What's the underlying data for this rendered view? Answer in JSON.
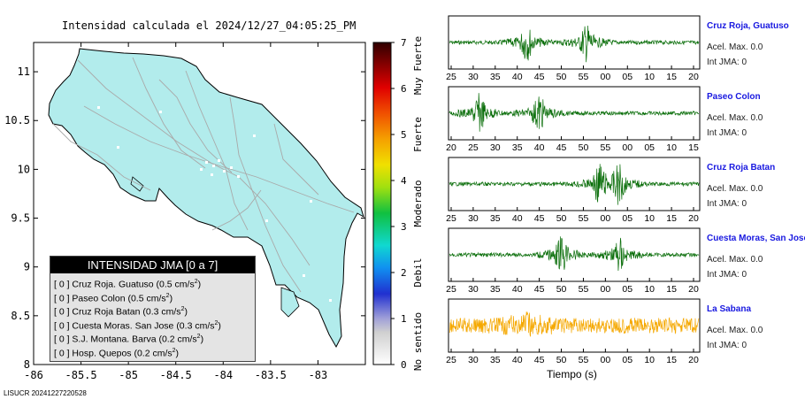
{
  "map": {
    "title": "Intensidad calculada el 2024/12/27_04:05:25_PM",
    "footer": "LISUCR 20241227220528",
    "chart_data": {
      "type": "map",
      "x_ticks": [
        "-86",
        "-85.5",
        "-85",
        "-84.5",
        "-84",
        "-83.5",
        "-83"
      ],
      "y_ticks": [
        "11",
        "10.5",
        "10",
        "9.5",
        "9",
        "8.5",
        "8"
      ],
      "xlim": [
        -86,
        -82.5
      ],
      "ylim": [
        8,
        11.3
      ],
      "land_color": "#b2ecec"
    }
  },
  "colorbar": {
    "ticks": [
      "0",
      "1",
      "2",
      "3",
      "4",
      "5",
      "6",
      "7"
    ],
    "labels": [
      "No sentido",
      "Debil",
      "Moderado",
      "Fuerte",
      "Muy Fuerte"
    ]
  },
  "legend": {
    "title": "INTENSIDAD JMA [0 a 7]",
    "items": [
      {
        "level": "[ 0 ]",
        "text": "Cruz Roja. Guatuso (0.5 cm/s",
        "sup": "2",
        "tail": ")"
      },
      {
        "level": "[ 0 ]",
        "text": "Paseo Colon (0.5 cm/s",
        "sup": "2",
        "tail": ")"
      },
      {
        "level": "[ 0 ]",
        "text": "Cruz Roja Batan (0.3 cm/s",
        "sup": "2",
        "tail": ")"
      },
      {
        "level": "[ 0 ]",
        "text": "Cuesta Moras. San Jose (0.3 cm/s",
        "sup": "2",
        "tail": ")"
      },
      {
        "level": "[ 0 ]",
        "text": "S.J. Montana. Barva (0.2 cm/s",
        "sup": "2",
        "tail": ")"
      },
      {
        "level": "[ 0 ]",
        "text": "Hosp. Quepos (0.2 cm/s",
        "sup": "2",
        "tail": ")"
      }
    ]
  },
  "waveforms": {
    "xlabel": "Tiempo (s)",
    "panels": [
      {
        "name": "Cruz Roja, Guatuso",
        "acel": "Acel. Max. 0.0",
        "jma": "Int JMA: 0",
        "color": "#0a6e0a",
        "ticks": [
          "25",
          "30",
          "35",
          "40",
          "45",
          "50",
          "55",
          "00",
          "05",
          "10",
          "15",
          "20"
        ],
        "bursts": [
          0.31,
          0.55
        ]
      },
      {
        "name": "Paseo Colon",
        "acel": "Acel. Max. 0.0",
        "jma": "Int JMA: 0",
        "color": "#0a6e0a",
        "ticks": [
          "20",
          "25",
          "30",
          "35",
          "40",
          "45",
          "50",
          "55",
          "00",
          "05",
          "10",
          "15"
        ],
        "bursts": [
          0.12,
          0.36
        ]
      },
      {
        "name": "Cruz Roja Batan",
        "acel": "Acel. Max. 0.0",
        "jma": "Int JMA: 0",
        "color": "#0a6e0a",
        "ticks": [
          "25",
          "30",
          "35",
          "40",
          "45",
          "50",
          "55",
          "00",
          "05",
          "10",
          "15",
          "20"
        ],
        "bursts": [
          0.6,
          0.68
        ]
      },
      {
        "name": "Cuesta Moras, San Jose",
        "acel": "Acel. Max. 0.0",
        "jma": "Int JMA: 0",
        "color": "#0a6e0a",
        "ticks": [
          "25",
          "30",
          "35",
          "40",
          "45",
          "50",
          "55",
          "00",
          "05",
          "10",
          "15",
          "20"
        ],
        "bursts": [
          0.45,
          0.68
        ]
      },
      {
        "name": "La Sabana",
        "acel": "Acel. Max. 0.0",
        "jma": "Int JMA: 0",
        "color": "#f5a800",
        "ticks": [
          "25",
          "30",
          "35",
          "40",
          "45",
          "50",
          "55",
          "00",
          "05",
          "10",
          "15",
          "20"
        ],
        "bursts": [
          0.31
        ]
      }
    ]
  }
}
